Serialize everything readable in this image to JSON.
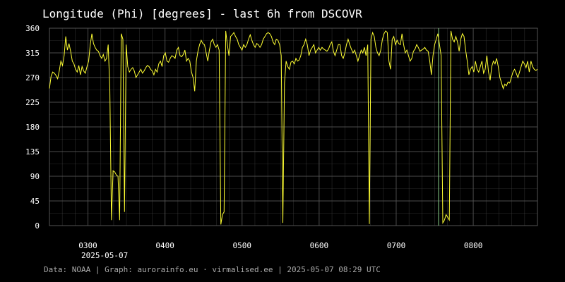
{
  "chart_data": {
    "type": "line",
    "title": "Longitude (Phi) [degrees] - last 6h from DSCOVR",
    "xlabel": "",
    "ylabel": "",
    "ylim": [
      0,
      360
    ],
    "yticks": [
      "0",
      "45",
      "90",
      "135",
      "180",
      "225",
      "270",
      "315",
      "360"
    ],
    "xticks": [
      "0300",
      "0400",
      "0500",
      "0600",
      "0700",
      "0800"
    ],
    "date_label": "2025-05-07",
    "x_start_time": "02:30",
    "x_end_time": "08:50",
    "marker_time": "06:93",
    "grid": true,
    "series": [
      {
        "color": "#ffff33",
        "points": [
          [
            "02:30",
            250
          ],
          [
            "02:31",
            272
          ],
          [
            "02:32",
            280
          ],
          [
            "02:33",
            278
          ],
          [
            "02:34",
            274
          ],
          [
            "02:35",
            268
          ],
          [
            "02:36",
            282
          ],
          [
            "02:37",
            300
          ],
          [
            "02:38",
            292
          ],
          [
            "02:39",
            310
          ],
          [
            "02:40",
            345
          ],
          [
            "02:41",
            320
          ],
          [
            "02:42",
            332
          ],
          [
            "02:43",
            318
          ],
          [
            "02:44",
            300
          ],
          [
            "02:45",
            295
          ],
          [
            "02:46",
            285
          ],
          [
            "02:47",
            280
          ],
          [
            "02:48",
            292
          ],
          [
            "02:49",
            275
          ],
          [
            "02:50",
            290
          ],
          [
            "02:51",
            282
          ],
          [
            "02:52",
            278
          ],
          [
            "02:53",
            290
          ],
          [
            "02:54",
            300
          ],
          [
            "02:55",
            330
          ],
          [
            "02:56",
            350
          ],
          [
            "02:57",
            332
          ],
          [
            "02:58",
            325
          ],
          [
            "02:59",
            320
          ],
          [
            "03:00",
            318
          ],
          [
            "03:01",
            310
          ],
          [
            "03:02",
            305
          ],
          [
            "03:03",
            312
          ],
          [
            "03:04",
            300
          ],
          [
            "03:05",
            305
          ],
          [
            "03:06",
            330
          ],
          [
            "03:07",
            250
          ],
          [
            "03:08",
            10
          ],
          [
            "03:09",
            100
          ],
          [
            "03:10",
            98
          ],
          [
            "03:11",
            92
          ],
          [
            "03:12",
            90
          ],
          [
            "03:13",
            10
          ],
          [
            "03:14",
            350
          ],
          [
            "03:15",
            340
          ],
          [
            "03:16",
            25
          ],
          [
            "03:17",
            330
          ],
          [
            "03:18",
            290
          ],
          [
            "03:19",
            280
          ],
          [
            "03:20",
            285
          ],
          [
            "03:21",
            288
          ],
          [
            "03:22",
            282
          ],
          [
            "03:23",
            270
          ],
          [
            "03:24",
            275
          ],
          [
            "03:25",
            280
          ],
          [
            "03:26",
            285
          ],
          [
            "03:27",
            278
          ],
          [
            "03:28",
            282
          ],
          [
            "03:29",
            288
          ],
          [
            "03:30",
            292
          ],
          [
            "03:31",
            290
          ],
          [
            "03:32",
            285
          ],
          [
            "03:33",
            282
          ],
          [
            "03:34",
            275
          ],
          [
            "03:35",
            285
          ],
          [
            "03:36",
            280
          ],
          [
            "03:37",
            295
          ],
          [
            "03:38",
            300
          ],
          [
            "03:39",
            290
          ],
          [
            "03:40",
            310
          ],
          [
            "03:41",
            315
          ],
          [
            "03:42",
            300
          ],
          [
            "03:43",
            298
          ],
          [
            "03:44",
            305
          ],
          [
            "03:45",
            310
          ],
          [
            "03:46",
            308
          ],
          [
            "03:47",
            305
          ],
          [
            "03:48",
            320
          ],
          [
            "03:49",
            325
          ],
          [
            "03:50",
            310
          ],
          [
            "03:51",
            308
          ],
          [
            "03:52",
            312
          ],
          [
            "03:53",
            320
          ],
          [
            "03:54",
            300
          ],
          [
            "03:55",
            305
          ],
          [
            "03:56",
            300
          ],
          [
            "03:57",
            280
          ],
          [
            "03:58",
            270
          ],
          [
            "03:59",
            245
          ],
          [
            "04:00",
            300
          ],
          [
            "04:01",
            318
          ],
          [
            "04:02",
            330
          ],
          [
            "04:03",
            338
          ],
          [
            "04:04",
            332
          ],
          [
            "04:05",
            330
          ],
          [
            "04:06",
            315
          ],
          [
            "04:07",
            300
          ],
          [
            "04:08",
            320
          ],
          [
            "04:09",
            335
          ],
          [
            "04:10",
            340
          ],
          [
            "04:11",
            330
          ],
          [
            "04:12",
            325
          ],
          [
            "04:13",
            330
          ],
          [
            "04:14",
            320
          ],
          [
            "04:15",
            2
          ],
          [
            "04:16",
            20
          ],
          [
            "04:17",
            25
          ],
          [
            "04:18",
            355
          ],
          [
            "04:19",
            330
          ],
          [
            "04:20",
            310
          ],
          [
            "04:21",
            345
          ],
          [
            "04:22",
            348
          ],
          [
            "04:23",
            352
          ],
          [
            "04:24",
            345
          ],
          [
            "04:25",
            340
          ],
          [
            "04:26",
            330
          ],
          [
            "04:27",
            325
          ],
          [
            "04:28",
            320
          ],
          [
            "04:29",
            330
          ],
          [
            "04:30",
            325
          ],
          [
            "04:31",
            330
          ],
          [
            "04:32",
            340
          ],
          [
            "04:33",
            348
          ],
          [
            "04:34",
            338
          ],
          [
            "04:35",
            330
          ],
          [
            "04:36",
            325
          ],
          [
            "04:37",
            332
          ],
          [
            "04:38",
            330
          ],
          [
            "04:39",
            325
          ],
          [
            "04:40",
            330
          ],
          [
            "04:41",
            340
          ],
          [
            "04:42",
            345
          ],
          [
            "04:43",
            350
          ],
          [
            "04:44",
            352
          ],
          [
            "04:45",
            350
          ],
          [
            "04:46",
            345
          ],
          [
            "04:47",
            335
          ],
          [
            "04:48",
            330
          ],
          [
            "04:49",
            340
          ],
          [
            "04:50",
            338
          ],
          [
            "04:51",
            330
          ],
          [
            "04:52",
            310
          ],
          [
            "04:53",
            5
          ],
          [
            "04:54",
            260
          ],
          [
            "04:55",
            300
          ],
          [
            "04:56",
            290
          ],
          [
            "04:57",
            285
          ],
          [
            "04:58",
            298
          ],
          [
            "04:59",
            300
          ],
          [
            "05:00",
            295
          ],
          [
            "05:01",
            305
          ],
          [
            "05:02",
            300
          ],
          [
            "05:03",
            302
          ],
          [
            "05:04",
            310
          ],
          [
            "05:05",
            325
          ],
          [
            "05:06",
            330
          ],
          [
            "05:07",
            340
          ],
          [
            "05:08",
            330
          ],
          [
            "05:09",
            310
          ],
          [
            "05:10",
            320
          ],
          [
            "05:11",
            325
          ],
          [
            "05:12",
            330
          ],
          [
            "05:13",
            315
          ],
          [
            "05:14",
            320
          ],
          [
            "05:15",
            325
          ],
          [
            "05:16",
            320
          ],
          [
            "05:17",
            325
          ],
          [
            "05:18",
            322
          ],
          [
            "05:19",
            320
          ],
          [
            "05:20",
            318
          ],
          [
            "05:21",
            322
          ],
          [
            "05:22",
            330
          ],
          [
            "05:23",
            335
          ],
          [
            "05:24",
            318
          ],
          [
            "05:25",
            310
          ],
          [
            "05:26",
            320
          ],
          [
            "05:27",
            330
          ],
          [
            "05:28",
            330
          ],
          [
            "05:29",
            310
          ],
          [
            "05:30",
            305
          ],
          [
            "05:31",
            315
          ],
          [
            "05:32",
            330
          ],
          [
            "05:33",
            340
          ],
          [
            "05:34",
            330
          ],
          [
            "05:35",
            322
          ],
          [
            "05:36",
            315
          ],
          [
            "05:37",
            320
          ],
          [
            "05:38",
            310
          ],
          [
            "05:39",
            300
          ],
          [
            "05:40",
            310
          ],
          [
            "05:41",
            320
          ],
          [
            "05:42",
            315
          ],
          [
            "05:43",
            325
          ],
          [
            "05:44",
            310
          ],
          [
            "05:45",
            330
          ],
          [
            "05:46",
            3
          ],
          [
            "05:47",
            340
          ],
          [
            "05:48",
            352
          ],
          [
            "05:49",
            345
          ],
          [
            "05:50",
            325
          ],
          [
            "05:51",
            315
          ],
          [
            "05:52",
            310
          ],
          [
            "05:53",
            320
          ],
          [
            "05:54",
            340
          ],
          [
            "05:55",
            350
          ],
          [
            "05:56",
            355
          ],
          [
            "05:57",
            352
          ],
          [
            "05:58",
            300
          ],
          [
            "05:59",
            285
          ],
          [
            "06:00",
            340
          ],
          [
            "06:01",
            345
          ],
          [
            "06:02",
            330
          ],
          [
            "06:03",
            338
          ],
          [
            "06:04",
            332
          ],
          [
            "06:05",
            330
          ],
          [
            "06:06",
            350
          ],
          [
            "06:07",
            330
          ],
          [
            "06:08",
            315
          ],
          [
            "06:09",
            320
          ],
          [
            "06:10",
            310
          ],
          [
            "06:11",
            300
          ],
          [
            "06:12",
            305
          ],
          [
            "06:13",
            318
          ],
          [
            "06:14",
            322
          ],
          [
            "06:15",
            330
          ],
          [
            "06:16",
            325
          ],
          [
            "06:17",
            318
          ],
          [
            "06:18",
            320
          ],
          [
            "06:19",
            322
          ],
          [
            "06:20",
            325
          ],
          [
            "06:21",
            320
          ],
          [
            "06:22",
            318
          ],
          [
            "06:23",
            300
          ],
          [
            "06:24",
            275
          ],
          [
            "06:25",
            310
          ],
          [
            "06:26",
            330
          ],
          [
            "06:27",
            340
          ],
          [
            "06:28",
            350
          ],
          [
            "06:29",
            330
          ],
          [
            "06:30",
            310
          ],
          [
            "06:31",
            5
          ],
          [
            "06:32",
            10
          ],
          [
            "06:33",
            20
          ],
          [
            "06:34",
            15
          ],
          [
            "06:35",
            10
          ],
          [
            "06:36",
            355
          ],
          [
            "06:37",
            340
          ],
          [
            "06:38",
            335
          ],
          [
            "06:39",
            345
          ],
          [
            "06:40",
            335
          ],
          [
            "06:41",
            318
          ],
          [
            "06:42",
            340
          ],
          [
            "06:43",
            350
          ],
          [
            "06:44",
            345
          ],
          [
            "06:45",
            320
          ],
          [
            "06:46",
            300
          ],
          [
            "06:47",
            275
          ],
          [
            "06:48",
            285
          ],
          [
            "06:49",
            290
          ],
          [
            "06:50",
            280
          ],
          [
            "06:51",
            300
          ],
          [
            "06:52",
            285
          ],
          [
            "06:53",
            280
          ],
          [
            "06:54",
            290
          ],
          [
            "06:55",
            300
          ],
          [
            "06:56",
            278
          ],
          [
            "06:57",
            285
          ],
          [
            "06:58",
            310
          ],
          [
            "06:59",
            280
          ],
          [
            "07:00",
            265
          ],
          [
            "07:01",
            290
          ],
          [
            "07:02",
            300
          ],
          [
            "07:03",
            295
          ],
          [
            "07:04",
            305
          ],
          [
            "07:05",
            290
          ],
          [
            "07:06",
            270
          ],
          [
            "07:07",
            260
          ],
          [
            "07:08",
            250
          ],
          [
            "07:09",
            258
          ],
          [
            "07:10",
            255
          ],
          [
            "07:11",
            262
          ],
          [
            "07:12",
            260
          ],
          [
            "07:13",
            270
          ],
          [
            "07:14",
            280
          ],
          [
            "07:15",
            285
          ],
          [
            "07:16",
            278
          ],
          [
            "07:17",
            270
          ],
          [
            "07:18",
            280
          ],
          [
            "07:19",
            290
          ],
          [
            "07:20",
            300
          ],
          [
            "07:21",
            295
          ],
          [
            "07:22",
            288
          ],
          [
            "07:23",
            300
          ],
          [
            "07:24",
            280
          ],
          [
            "07:25",
            300
          ],
          [
            "07:26",
            290
          ],
          [
            "07:27",
            285
          ],
          [
            "07:28",
            283
          ],
          [
            "07:29",
            285
          ]
        ]
      }
    ],
    "marker_line_color": "#88cc88"
  },
  "footer": {
    "text": "Data: NOAA | Graph: aurorainfo.eu · virmalised.ee | 2025-05-07 08:29 UTC"
  },
  "colors": {
    "background": "#000000",
    "grid": "#555555",
    "axis_text": "#ffffff",
    "line": "#ffff33",
    "marker": "#88cc88"
  }
}
